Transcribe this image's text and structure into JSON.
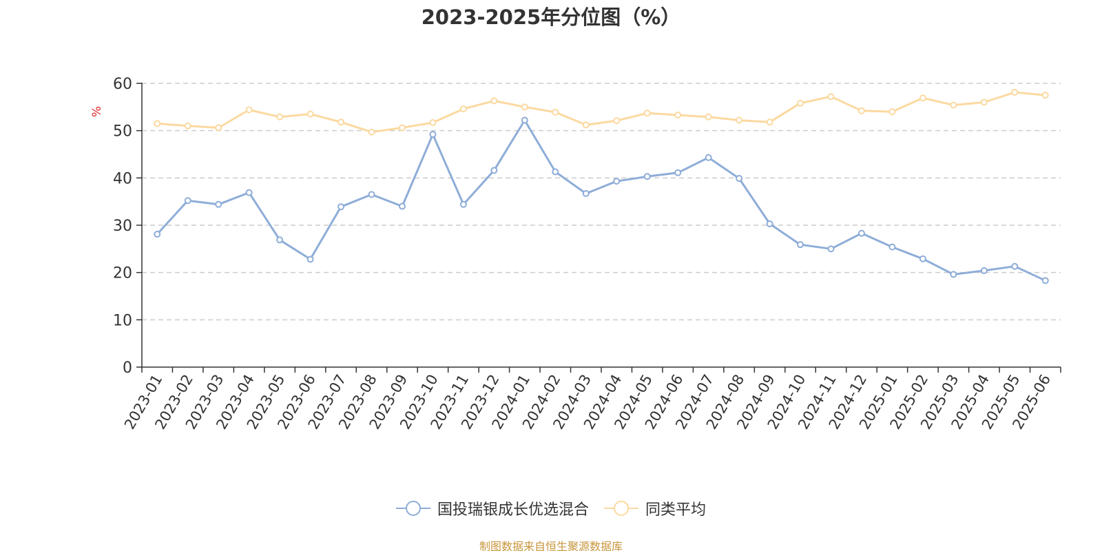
{
  "chart_data": {
    "type": "line",
    "title": "2023-2025年分位图（%）",
    "ylabel": "%",
    "xlabel": "",
    "ylim": [
      0,
      60
    ],
    "yticks": [
      0,
      10,
      20,
      30,
      40,
      50,
      60
    ],
    "grid": true,
    "legend_position": "bottom-center",
    "categories": [
      "2023-01",
      "2023-02",
      "2023-03",
      "2023-04",
      "2023-05",
      "2023-06",
      "2023-07",
      "2023-08",
      "2023-09",
      "2023-10",
      "2023-11",
      "2023-12",
      "2024-01",
      "2024-02",
      "2024-03",
      "2024-04",
      "2024-05",
      "2024-06",
      "2024-07",
      "2024-08",
      "2024-09",
      "2024-10",
      "2024-11",
      "2024-12",
      "2025-01",
      "2025-02",
      "2025-03",
      "2025-04",
      "2025-05",
      "2025-06"
    ],
    "series": [
      {
        "name": "国投瑞银成长优选混合",
        "color": "#8eadd8",
        "values": [
          28.1,
          35.2,
          34.4,
          36.9,
          26.9,
          22.8,
          33.9,
          36.5,
          34.0,
          49.2,
          34.4,
          41.6,
          52.2,
          41.3,
          36.7,
          39.3,
          40.3,
          41.1,
          44.3,
          39.9,
          30.3,
          25.9,
          25.0,
          28.3,
          25.4,
          22.9,
          19.6,
          20.4,
          21.3,
          18.3
        ]
      },
      {
        "name": "同类平均",
        "color": "#fbd9a0",
        "values": [
          51.5,
          51.0,
          50.6,
          54.4,
          52.9,
          53.5,
          51.8,
          49.7,
          50.6,
          51.7,
          54.6,
          56.3,
          55.0,
          53.9,
          51.2,
          52.1,
          53.7,
          53.3,
          52.9,
          52.2,
          51.8,
          55.8,
          57.2,
          54.2,
          54.0,
          56.9,
          55.4,
          56.0,
          58.1,
          57.5
        ]
      }
    ]
  },
  "footer": {
    "source": "制图数据来自恒生聚源数据库"
  }
}
